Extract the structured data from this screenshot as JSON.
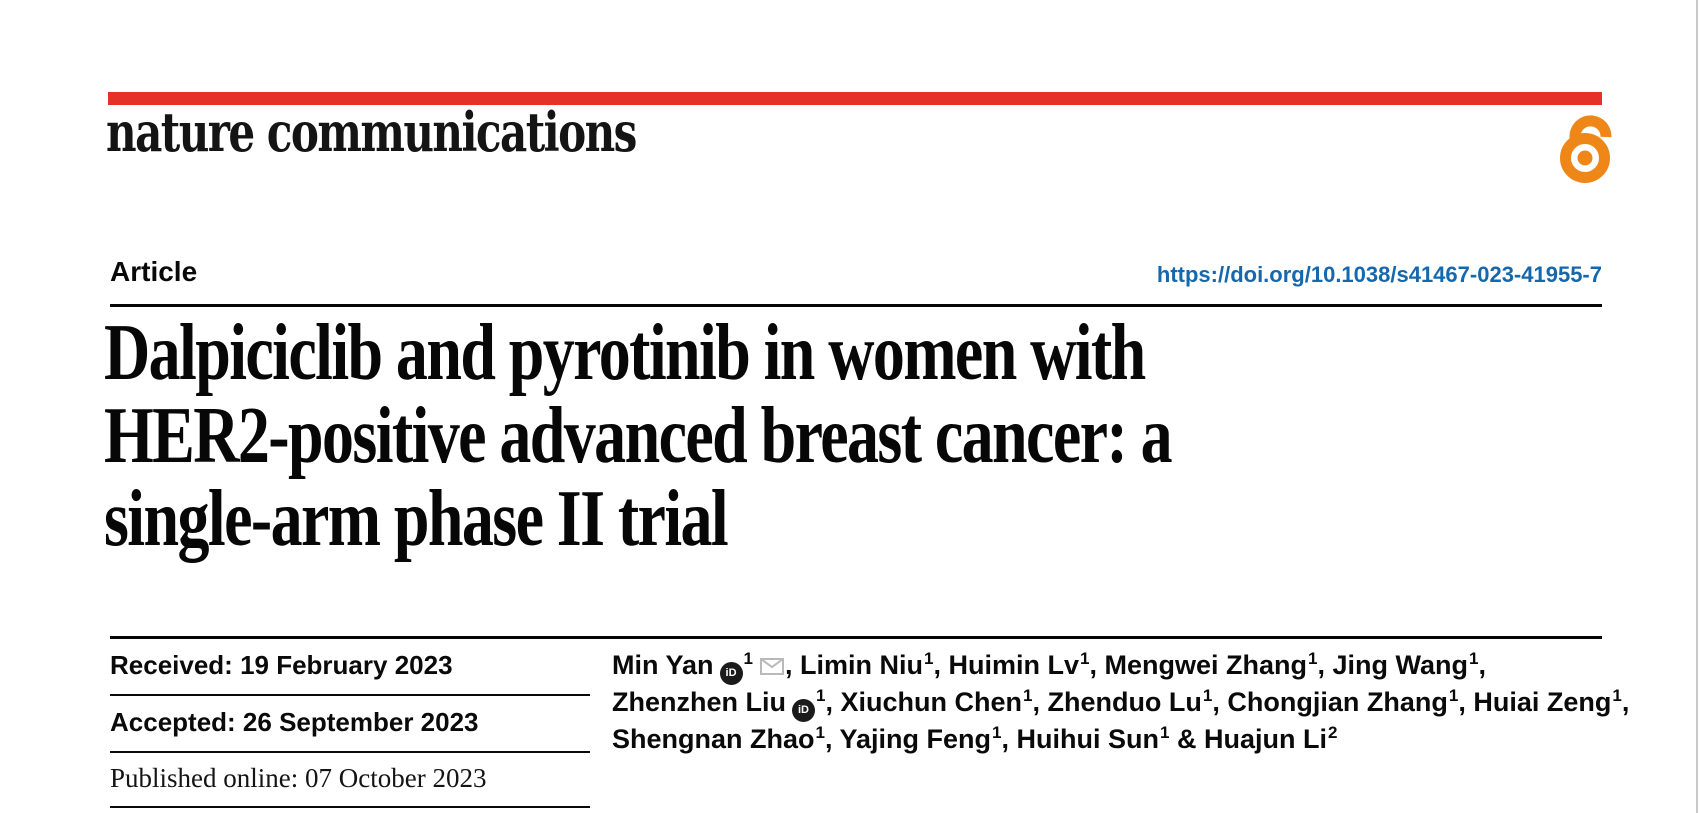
{
  "colors": {
    "masthead_bar": "#e53127",
    "open_access": "#ef8718",
    "doi_link": "#1668ad",
    "page_edge": "#c9c9c9"
  },
  "masthead": {
    "logo": "nature communications",
    "open_access_icon": "open-access-lock-icon"
  },
  "article_row": {
    "label": "Article",
    "doi": "https://doi.org/10.1038/s41467-023-41955-7"
  },
  "title": {
    "lines": [
      "Dalpiciclib and pyrotinib in women with",
      "HER2-positive advanced breast cancer: a",
      "single-arm phase II trial"
    ]
  },
  "dates": {
    "rows": [
      {
        "text": "Received: 19 February 2023"
      },
      {
        "text": "Accepted: 26 September 2023"
      },
      {
        "text": "Published online: 07 October 2023"
      }
    ]
  },
  "icons": {
    "orcid": "orcid-id-icon",
    "orcid_text": "iD",
    "email": "envelope-icon",
    "open_access": "open-access-lock-icon"
  },
  "authors": {
    "lines": [
      [
        {
          "t": "Min Yan",
          "orcid": true,
          "sup": "1",
          "email": true,
          "sep": ", "
        },
        {
          "t": "Limin Niu",
          "sup": "1",
          "sep": ", "
        },
        {
          "t": "Huimin Lv",
          "sup": "1",
          "sep": ", "
        },
        {
          "t": "Mengwei Zhang",
          "sup": "1",
          "sep": ", "
        },
        {
          "t": "Jing Wang",
          "sup": "1",
          "sep": ","
        }
      ],
      [
        {
          "t": "Zhenzhen Liu",
          "orcid": true,
          "sup": "1",
          "sep": ", "
        },
        {
          "t": "Xiuchun Chen",
          "sup": "1",
          "sep": ", "
        },
        {
          "t": "Zhenduo Lu",
          "sup": "1",
          "sep": ", "
        },
        {
          "t": "Chongjian Zhang",
          "sup": "1",
          "sep": ", "
        },
        {
          "t": "Huiai Zeng",
          "sup": "1",
          "sep": ","
        }
      ],
      [
        {
          "t": "Shengnan Zhao",
          "sup": "1",
          "sep": ", "
        },
        {
          "t": "Yajing Feng",
          "sup": "1",
          "sep": ", "
        },
        {
          "t": "Huihui Sun",
          "sup": "1",
          "sep": " & "
        },
        {
          "t": "Huajun Li",
          "sup": "2",
          "sep": ""
        }
      ]
    ]
  }
}
